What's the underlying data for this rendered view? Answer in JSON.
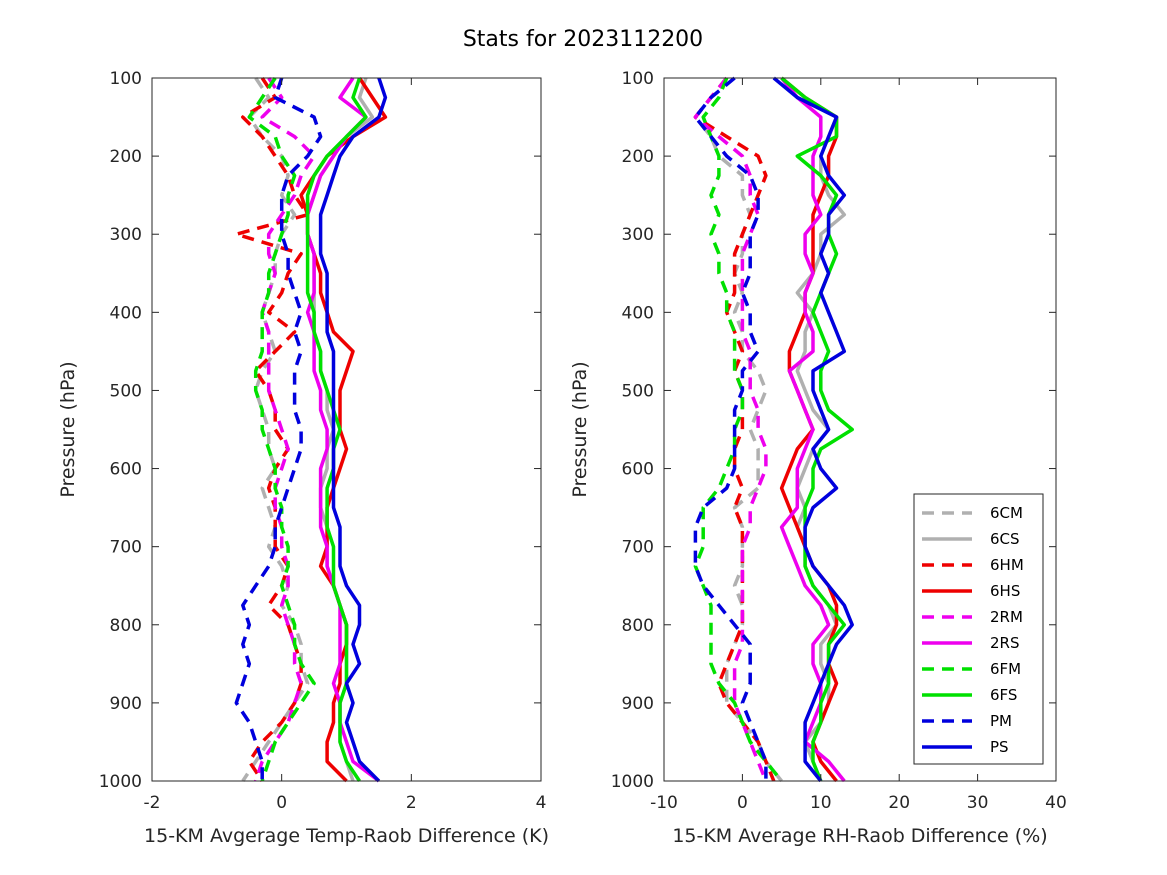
{
  "title": "Stats for 2023112200",
  "chart_data": [
    {
      "type": "line",
      "xlabel": "15-KM Avgerage Temp-Raob Difference (K)",
      "ylabel": "Pressure (hPa)",
      "xlim": [
        -2,
        4
      ],
      "ylim": [
        1000,
        100
      ],
      "xticks": [
        "-2",
        "0",
        "2",
        "4"
      ],
      "yticks": [
        "100",
        "200",
        "300",
        "400",
        "500",
        "600",
        "700",
        "800",
        "900",
        "1000"
      ],
      "pressure": [
        100,
        125,
        150,
        175,
        200,
        225,
        250,
        275,
        300,
        325,
        350,
        375,
        400,
        425,
        450,
        475,
        500,
        525,
        550,
        575,
        600,
        625,
        650,
        675,
        700,
        725,
        750,
        775,
        800,
        825,
        850,
        875,
        900,
        925,
        950,
        975,
        1000
      ],
      "series": [
        {
          "name": "6CM",
          "color": "#b0b0b0",
          "dashed": true,
          "values": [
            -0.4,
            -0.2,
            -0.5,
            -0.3,
            0.0,
            0.1,
            0.0,
            0.2,
            0.0,
            -0.1,
            -0.1,
            -0.2,
            -0.3,
            -0.2,
            -0.1,
            -0.3,
            -0.4,
            -0.3,
            -0.2,
            -0.2,
            -0.1,
            -0.3,
            -0.2,
            -0.1,
            -0.2,
            0.0,
            0.1,
            0.0,
            0.2,
            0.3,
            0.3,
            0.4,
            0.2,
            0.0,
            -0.2,
            -0.4,
            -0.6
          ]
        },
        {
          "name": "6CS",
          "color": "#b0b0b0",
          "dashed": false,
          "values": [
            1.3,
            1.2,
            1.4,
            1.0,
            0.8,
            0.6,
            0.5,
            0.4,
            0.4,
            0.5,
            0.5,
            0.5,
            0.5,
            0.5,
            0.6,
            0.6,
            0.7,
            0.7,
            0.8,
            0.7,
            0.7,
            0.6,
            0.6,
            0.7,
            0.7,
            0.7,
            0.8,
            0.9,
            1.0,
            1.0,
            1.0,
            1.0,
            0.9,
            0.9,
            0.9,
            1.0,
            1.1
          ]
        },
        {
          "name": "6HM",
          "color": "#ee0000",
          "dashed": true,
          "values": [
            -0.3,
            -0.1,
            -0.6,
            -0.3,
            -0.1,
            0.1,
            0.2,
            0.4,
            -0.7,
            0.3,
            0.1,
            0.0,
            -0.2,
            0.2,
            -0.1,
            -0.4,
            -0.2,
            -0.1,
            -0.1,
            0.1,
            -0.1,
            -0.2,
            -0.1,
            -0.1,
            -0.1,
            0.1,
            0.0,
            -0.2,
            0.1,
            0.2,
            0.3,
            0.3,
            0.2,
            0.0,
            -0.3,
            -0.5,
            -0.3
          ]
        },
        {
          "name": "6HS",
          "color": "#ee0000",
          "dashed": false,
          "values": [
            1.2,
            1.4,
            1.6,
            1.1,
            0.7,
            0.5,
            0.3,
            0.4,
            0.4,
            0.5,
            0.6,
            0.6,
            0.7,
            0.8,
            1.1,
            1.0,
            0.9,
            0.9,
            0.9,
            1.0,
            0.9,
            0.8,
            0.7,
            0.7,
            0.7,
            0.6,
            0.8,
            0.9,
            1.0,
            1.0,
            0.9,
            0.9,
            0.8,
            0.8,
            0.7,
            0.7,
            1.0
          ]
        },
        {
          "name": "2RM",
          "color": "#ee00ee",
          "dashed": true,
          "values": [
            -0.2,
            0.0,
            -0.3,
            0.2,
            0.5,
            0.3,
            0.2,
            0.0,
            -0.2,
            -0.2,
            -0.1,
            -0.2,
            -0.3,
            -0.2,
            -0.2,
            -0.2,
            -0.2,
            -0.1,
            0.0,
            0.1,
            0.0,
            -0.1,
            -0.1,
            0.0,
            0.0,
            0.1,
            0.1,
            0.0,
            0.1,
            0.2,
            0.2,
            0.3,
            0.2,
            0.1,
            -0.1,
            -0.3,
            -0.4
          ]
        },
        {
          "name": "2RS",
          "color": "#ee00ee",
          "dashed": false,
          "values": [
            1.1,
            0.9,
            1.3,
            1.0,
            0.8,
            0.6,
            0.5,
            0.4,
            0.4,
            0.5,
            0.5,
            0.5,
            0.4,
            0.5,
            0.5,
            0.5,
            0.6,
            0.6,
            0.7,
            0.7,
            0.6,
            0.6,
            0.6,
            0.6,
            0.7,
            0.7,
            0.8,
            0.9,
            0.9,
            0.9,
            0.9,
            0.8,
            0.9,
            0.9,
            1.0,
            1.1,
            1.5
          ]
        },
        {
          "name": "6FM",
          "color": "#00e000",
          "dashed": true,
          "values": [
            -0.1,
            -0.3,
            -0.5,
            -0.1,
            0.0,
            0.2,
            0.1,
            0.1,
            0.0,
            -0.1,
            -0.2,
            -0.2,
            -0.3,
            -0.3,
            -0.3,
            -0.4,
            -0.4,
            -0.3,
            -0.3,
            -0.2,
            -0.1,
            -0.1,
            0.0,
            0.0,
            0.1,
            0.1,
            0.0,
            0.1,
            0.2,
            0.2,
            0.3,
            0.5,
            0.3,
            0.1,
            -0.1,
            -0.2,
            -0.3
          ]
        },
        {
          "name": "6FS",
          "color": "#00e000",
          "dashed": false,
          "values": [
            1.2,
            1.1,
            1.3,
            1.0,
            0.7,
            0.5,
            0.4,
            0.4,
            0.4,
            0.4,
            0.4,
            0.4,
            0.5,
            0.5,
            0.6,
            0.6,
            0.7,
            0.8,
            0.9,
            0.8,
            0.8,
            0.7,
            0.7,
            0.7,
            0.8,
            0.8,
            0.8,
            0.9,
            1.0,
            1.0,
            1.0,
            1.0,
            0.9,
            0.9,
            0.9,
            1.0,
            1.2
          ]
        },
        {
          "name": "PM",
          "color": "#0000dd",
          "dashed": true,
          "values": [
            0.0,
            -0.1,
            0.5,
            0.6,
            0.4,
            0.1,
            0.0,
            0.0,
            0.0,
            0.1,
            0.1,
            0.2,
            0.3,
            0.2,
            0.3,
            0.2,
            0.2,
            0.2,
            0.3,
            0.3,
            0.2,
            0.1,
            0.0,
            -0.1,
            -0.1,
            -0.2,
            -0.4,
            -0.6,
            -0.5,
            -0.6,
            -0.5,
            -0.6,
            -0.7,
            -0.5,
            -0.4,
            -0.3,
            -0.3
          ]
        },
        {
          "name": "PS",
          "color": "#0000dd",
          "dashed": false,
          "values": [
            1.5,
            1.6,
            1.5,
            1.1,
            0.9,
            0.8,
            0.7,
            0.6,
            0.6,
            0.6,
            0.7,
            0.7,
            0.7,
            0.7,
            0.8,
            0.8,
            0.8,
            0.8,
            0.8,
            0.8,
            0.8,
            0.8,
            0.8,
            0.9,
            0.9,
            0.9,
            1.0,
            1.2,
            1.2,
            1.1,
            1.2,
            1.0,
            1.1,
            1.0,
            1.1,
            1.2,
            1.5
          ]
        }
      ]
    },
    {
      "type": "line",
      "xlabel": "15-KM Average RH-Raob Difference (%)",
      "ylabel": "Pressure (hPa)",
      "xlim": [
        -10,
        40
      ],
      "ylim": [
        1000,
        100
      ],
      "xticks": [
        "-10",
        "0",
        "10",
        "20",
        "30",
        "40"
      ],
      "yticks": [
        "100",
        "200",
        "300",
        "400",
        "500",
        "600",
        "700",
        "800",
        "900",
        "1000"
      ],
      "pressure": [
        100,
        125,
        150,
        175,
        200,
        225,
        250,
        275,
        300,
        325,
        350,
        375,
        400,
        425,
        450,
        475,
        500,
        525,
        550,
        575,
        600,
        625,
        650,
        675,
        700,
        725,
        750,
        775,
        800,
        825,
        850,
        875,
        900,
        925,
        950,
        975,
        1000
      ],
      "series": [
        {
          "name": "6CM",
          "color": "#b0b0b0",
          "dashed": true,
          "values": [
            -2,
            -4,
            -6,
            -4,
            -3,
            0,
            0,
            1,
            0,
            0,
            -1,
            0,
            -1,
            0,
            0,
            2,
            3,
            2,
            1,
            2,
            2,
            2,
            -1,
            0,
            0,
            0,
            -1,
            0,
            0,
            -1,
            -2,
            -2,
            -2,
            0,
            2,
            3,
            5
          ]
        },
        {
          "name": "6CS",
          "color": "#b0b0b0",
          "dashed": false,
          "values": [
            5,
            7,
            12,
            11,
            10,
            10,
            11,
            13,
            10,
            10,
            9,
            7,
            9,
            8,
            8,
            7,
            8,
            9,
            11,
            9,
            8,
            7,
            8,
            7,
            8,
            8,
            9,
            11,
            12,
            10,
            10,
            11,
            11,
            10,
            8,
            9,
            10
          ]
        },
        {
          "name": "6HM",
          "color": "#ee0000",
          "dashed": true,
          "values": [
            -2,
            -4,
            -6,
            -2,
            2,
            3,
            2,
            1,
            0,
            -1,
            -1,
            -1,
            -2,
            -1,
            0,
            -1,
            0,
            0,
            0,
            -1,
            -1,
            0,
            -1,
            0,
            0,
            0,
            0,
            0,
            0,
            -1,
            -2,
            -3,
            -2,
            0,
            2,
            3,
            4
          ]
        },
        {
          "name": "6HS",
          "color": "#ee0000",
          "dashed": false,
          "values": [
            5,
            8,
            12,
            12,
            11,
            11,
            10,
            9,
            9,
            9,
            9,
            8,
            8,
            7,
            6,
            6,
            7,
            8,
            9,
            7,
            6,
            5,
            6,
            7,
            8,
            9,
            11,
            12,
            12,
            11,
            11,
            12,
            11,
            10,
            9,
            10,
            12
          ]
        },
        {
          "name": "2RM",
          "color": "#ee00ee",
          "dashed": true,
          "values": [
            -2,
            -4,
            -6,
            -3,
            0,
            1,
            1,
            2,
            1,
            0,
            0,
            0,
            0,
            0,
            1,
            1,
            1,
            2,
            2,
            3,
            3,
            2,
            1,
            1,
            0,
            0,
            0,
            0,
            0,
            0,
            -1,
            -1,
            -1,
            0,
            1,
            2,
            3
          ]
        },
        {
          "name": "2RS",
          "color": "#ee00ee",
          "dashed": false,
          "values": [
            5,
            7,
            10,
            10,
            9,
            9,
            9,
            10,
            8,
            8,
            9,
            8,
            8,
            9,
            9,
            6,
            7,
            8,
            9,
            8,
            7,
            7,
            7,
            5,
            6,
            7,
            8,
            10,
            11,
            9,
            9,
            10,
            10,
            9,
            8,
            11,
            13
          ]
        },
        {
          "name": "6FM",
          "color": "#00e000",
          "dashed": true,
          "values": [
            -2,
            -3,
            -5,
            -4,
            -3,
            -3,
            -4,
            -3,
            -4,
            -3,
            -3,
            -2,
            -2,
            -1,
            -1,
            -1,
            0,
            0,
            -1,
            -1,
            -2,
            -3,
            -5,
            -5,
            -5,
            -6,
            -5,
            -4,
            -4,
            -4,
            -4,
            -3,
            -1,
            0,
            1,
            3,
            5
          ]
        },
        {
          "name": "6FS",
          "color": "#00e000",
          "dashed": false,
          "values": [
            5,
            8,
            12,
            12,
            7,
            10,
            12,
            11,
            11,
            12,
            11,
            10,
            9,
            10,
            11,
            10,
            10,
            11,
            14,
            10,
            9,
            9,
            8,
            8,
            8,
            8,
            9,
            11,
            13,
            11,
            11,
            11,
            10,
            10,
            9,
            9,
            10
          ]
        },
        {
          "name": "PM",
          "color": "#0000dd",
          "dashed": true,
          "values": [
            -1,
            -4,
            -6,
            -4,
            -2,
            1,
            2,
            2,
            1,
            1,
            1,
            0,
            1,
            1,
            2,
            0,
            0,
            -1,
            -1,
            -1,
            -1,
            -2,
            -5,
            -6,
            -6,
            -6,
            -5,
            -3,
            -1,
            1,
            1,
            1,
            0,
            1,
            2,
            3,
            3
          ]
        },
        {
          "name": "PS",
          "color": "#0000dd",
          "dashed": false,
          "values": [
            4,
            7,
            12,
            11,
            10,
            11,
            13,
            11,
            11,
            10,
            11,
            10,
            11,
            12,
            13,
            9,
            9,
            10,
            11,
            9,
            10,
            12,
            9,
            8,
            8,
            9,
            11,
            13,
            14,
            12,
            11,
            10,
            9,
            8,
            8,
            8,
            10
          ]
        }
      ]
    }
  ]
}
